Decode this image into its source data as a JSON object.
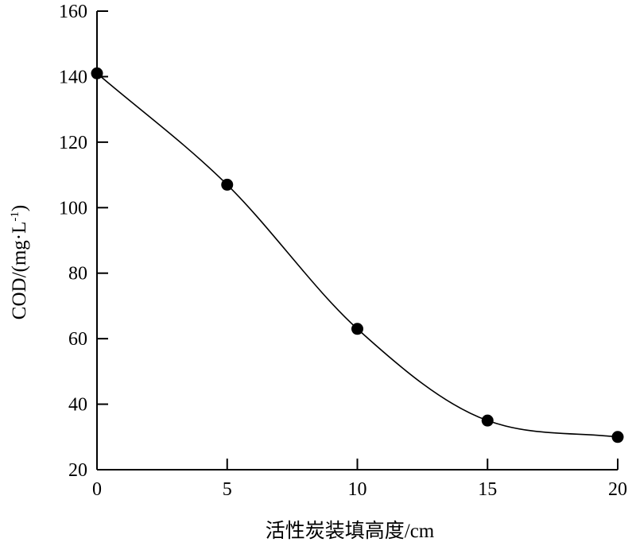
{
  "chart_data": {
    "type": "line",
    "title": "",
    "xlabel": "活性炭装填高度/cm",
    "ylabel": "COD/(mg·L",
    "ylabel_superscript": "-1",
    "ylabel_close": ")",
    "xlim": [
      0,
      20
    ],
    "ylim": [
      20,
      160
    ],
    "xticks": [
      0,
      5,
      10,
      15,
      20
    ],
    "yticks": [
      20,
      40,
      60,
      80,
      100,
      120,
      140,
      160
    ],
    "grid": false,
    "series": [
      {
        "x": [
          0,
          5,
          10,
          15,
          20
        ],
        "y": [
          141,
          107,
          63,
          35,
          30
        ],
        "marker": "filled-circle",
        "line": "smooth",
        "color": "#000000"
      }
    ]
  }
}
